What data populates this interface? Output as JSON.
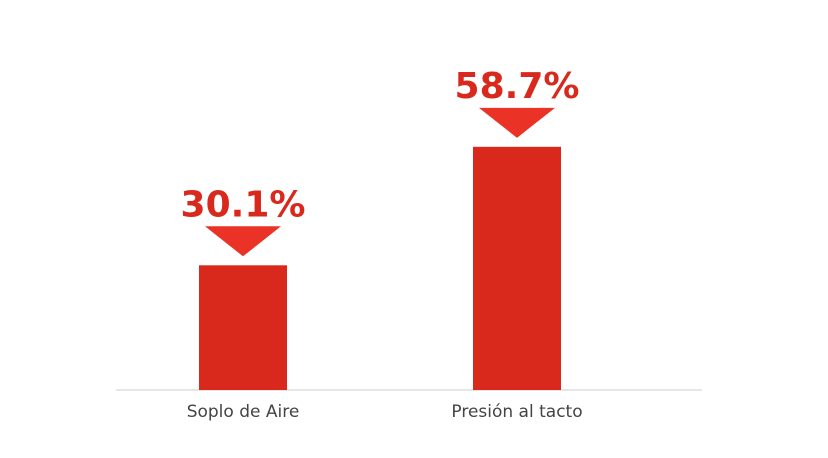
{
  "chart_data": {
    "type": "bar",
    "categories": [
      "Soplo de Aire",
      "Presión al tacto"
    ],
    "values": [
      30.1,
      58.7
    ],
    "value_labels": [
      "30.1%",
      "58.7%"
    ],
    "ylim": [
      0,
      70
    ],
    "grid": false,
    "title": "",
    "xlabel": "",
    "ylabel": ""
  },
  "colors": {
    "bar": "#d9291c",
    "marker": "#ea3326",
    "label": "#d9291c",
    "axis": "#cccccc",
    "category_text": "#444444"
  }
}
